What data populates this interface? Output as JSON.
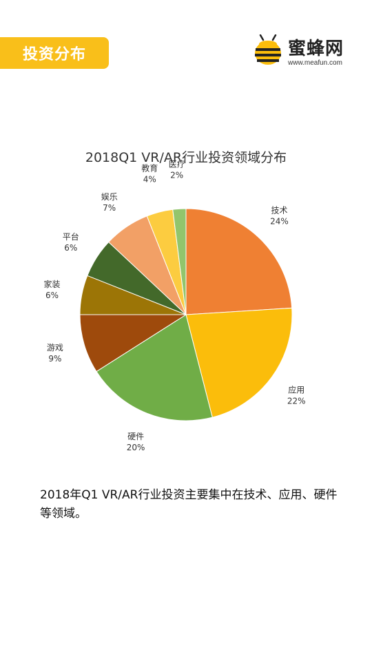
{
  "header": {
    "tag_label": "投资分布"
  },
  "brand": {
    "name": "蜜蜂网",
    "url": "www.meafun.com"
  },
  "chart_data": {
    "type": "pie",
    "title": "2018Q1 VR/AR行业投资领域分布",
    "slices": [
      {
        "label": "技术",
        "value": 24,
        "value_label": "24%",
        "color": "#ef8033"
      },
      {
        "label": "应用",
        "value": 22,
        "value_label": "22%",
        "color": "#fbbd0b"
      },
      {
        "label": "硬件",
        "value": 20,
        "value_label": "20%",
        "color": "#70ad47"
      },
      {
        "label": "游戏",
        "value": 9,
        "value_label": "9%",
        "color": "#9e4a0c"
      },
      {
        "label": "家装",
        "value": 6,
        "value_label": "6%",
        "color": "#9c7506"
      },
      {
        "label": "平台",
        "value": 6,
        "value_label": "6%",
        "color": "#43692a"
      },
      {
        "label": "娱乐",
        "value": 7,
        "value_label": "7%",
        "color": "#f2a066"
      },
      {
        "label": "教育",
        "value": 4,
        "value_label": "4%",
        "color": "#fccc40"
      },
      {
        "label": "医疗",
        "value": 2,
        "value_label": "2%",
        "color": "#92c56c"
      }
    ],
    "start_angle": "12 o'clock",
    "direction": "clockwise"
  },
  "caption": {
    "text": "2018年Q1 VR/AR行业投资主要集中在技术、应用、硬件等领域。"
  }
}
